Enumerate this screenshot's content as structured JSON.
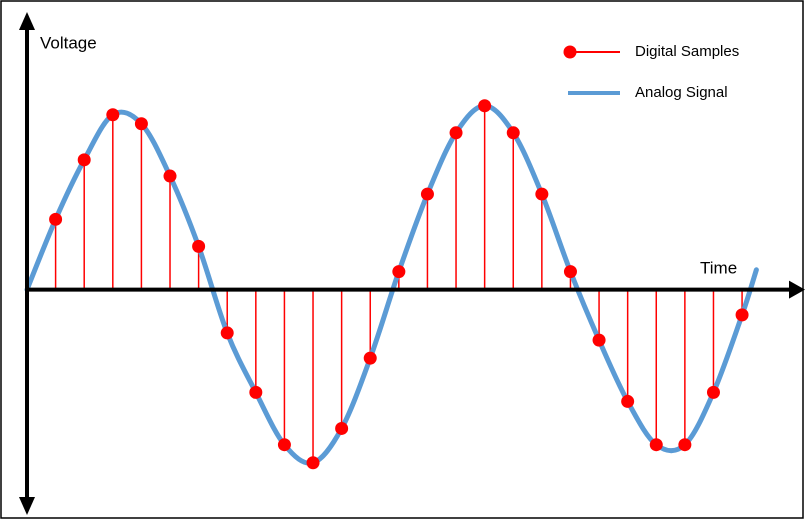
{
  "chart_data": {
    "type": "stem",
    "x_label": "Time",
    "y_label": "Voltage",
    "xlim": [
      0,
      27.2
    ],
    "ylim": [
      -1.25,
      1.54
    ],
    "legend": "upper right",
    "series": [
      {
        "name": "Digital Samples",
        "type": "stem",
        "color": "#ff0000",
        "x": [
          1,
          2,
          3,
          4,
          5,
          6,
          7,
          8,
          9,
          10,
          11,
          12,
          13,
          14,
          15,
          16,
          17,
          18,
          19,
          20,
          21,
          22,
          23,
          24,
          25
        ],
        "values": [
          0.39,
          0.72,
          0.97,
          0.92,
          0.63,
          0.24,
          -0.24,
          -0.57,
          -0.86,
          -0.96,
          -0.77,
          -0.38,
          0.1,
          0.53,
          0.87,
          1.02,
          0.87,
          0.53,
          0.1,
          -0.28,
          -0.62,
          -0.86,
          -0.86,
          -0.57,
          -0.14
        ]
      },
      {
        "name": "Analog Signal",
        "type": "line",
        "color": "#5b9bd5",
        "x": [
          0,
          1,
          2,
          3,
          4,
          5,
          6,
          7,
          8,
          9,
          10,
          11,
          12,
          13,
          14,
          15,
          16,
          17,
          18,
          19,
          20,
          21,
          22,
          23,
          24,
          25,
          25.5
        ],
        "values": [
          0,
          0.39,
          0.72,
          0.97,
          0.92,
          0.63,
          0.24,
          -0.24,
          -0.57,
          -0.86,
          -0.96,
          -0.77,
          -0.38,
          0.1,
          0.53,
          0.87,
          1.02,
          0.87,
          0.53,
          0.1,
          -0.28,
          -0.62,
          -0.86,
          -0.86,
          -0.57,
          -0.14,
          0.11
        ]
      }
    ]
  }
}
